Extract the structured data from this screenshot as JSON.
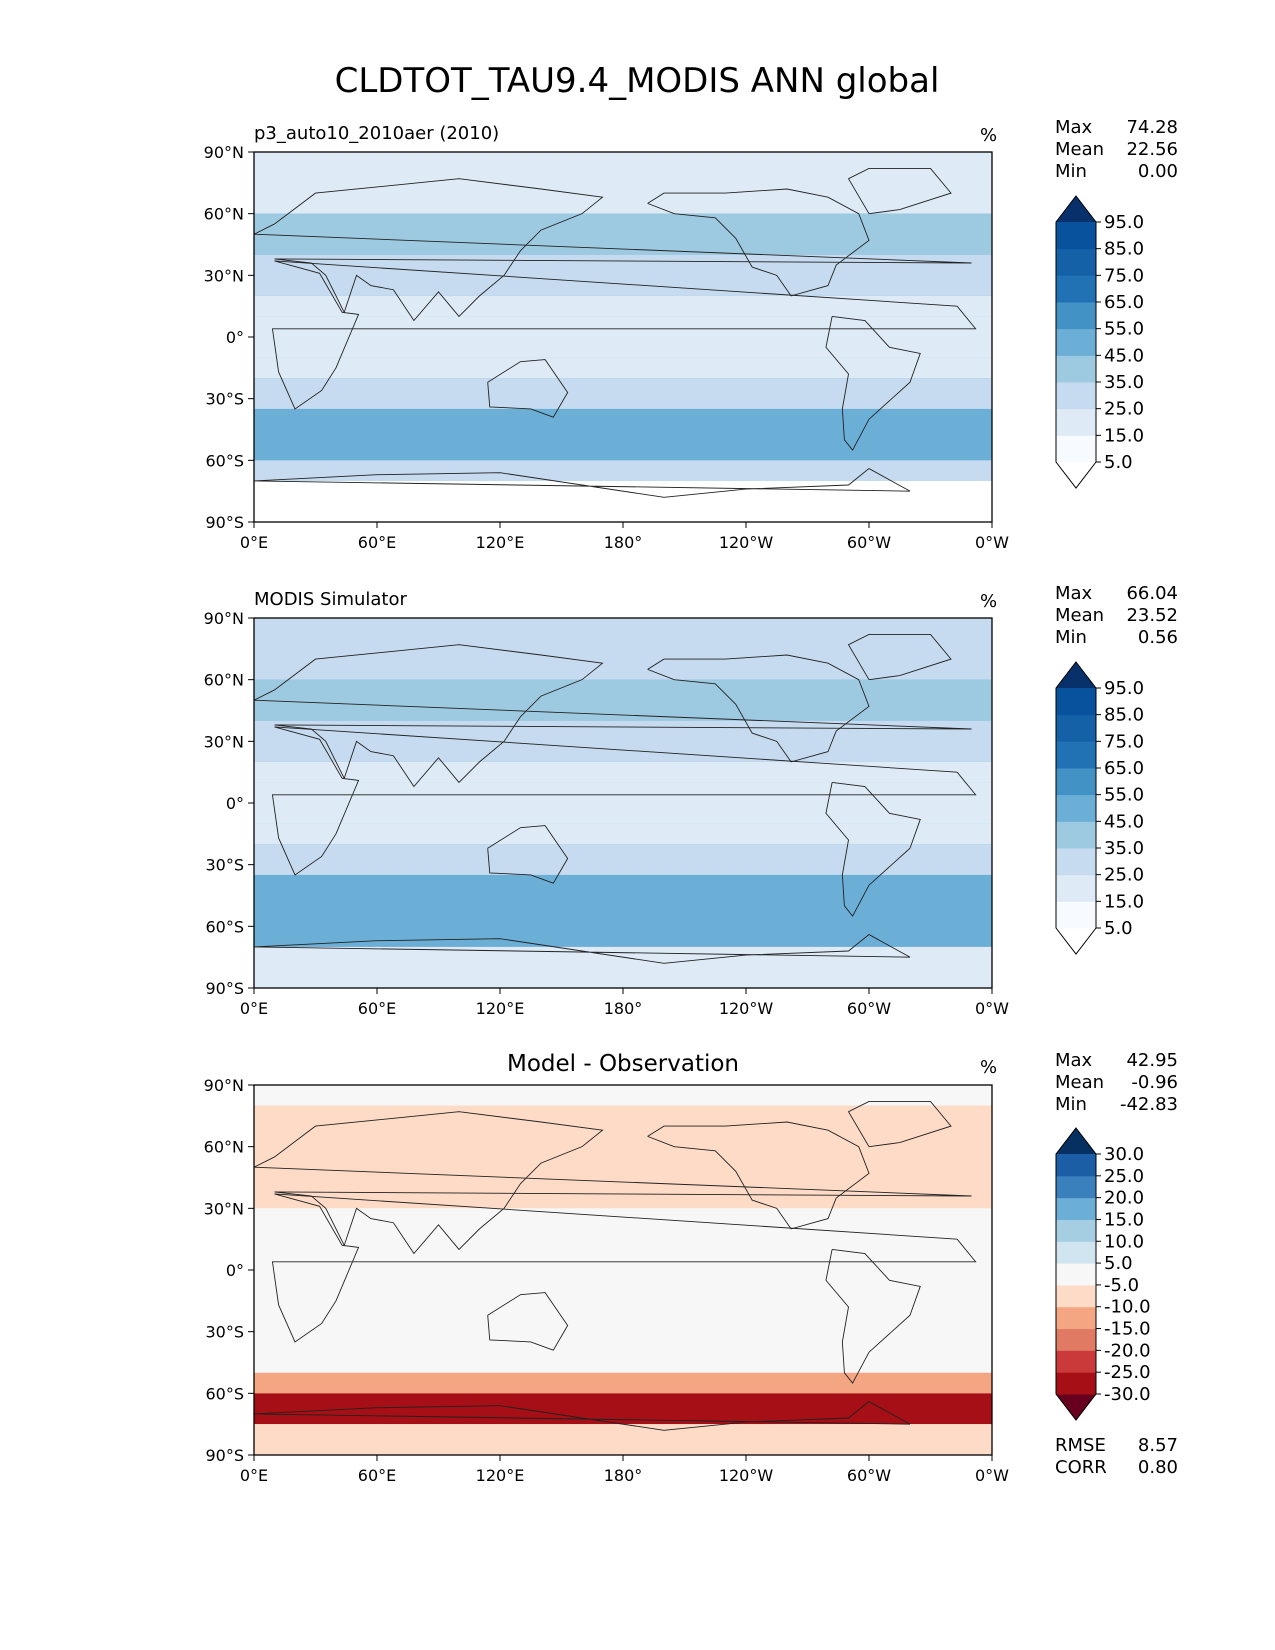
{
  "figure_title": "CLDTOT_TAU9.4_MODIS ANN global",
  "chart_data": [
    {
      "type": "heatmap",
      "title": "p3_auto10_2010aer (2010)",
      "units": "%",
      "stats": [
        {
          "label": "Max",
          "value": "74.28"
        },
        {
          "label": "Mean",
          "value": "22.56"
        },
        {
          "label": "Min",
          "value": "0.00"
        }
      ],
      "colorbar": {
        "ticks": [
          "5.0",
          "15.0",
          "25.0",
          "35.0",
          "45.0",
          "55.0",
          "65.0",
          "75.0",
          "85.0",
          "95.0"
        ],
        "colors": [
          "#ffffff",
          "#f7fbff",
          "#deebf7",
          "#c6dbef",
          "#9ecae1",
          "#6baed6",
          "#4292c6",
          "#2171b5",
          "#1461a8",
          "#08519c",
          "#08306b"
        ]
      },
      "x_ticks": [
        "0°E",
        "60°E",
        "120°E",
        "180°",
        "120°W",
        "60°W",
        "0°W"
      ],
      "y_ticks": [
        "90°N",
        "60°N",
        "30°N",
        "0°",
        "30°S",
        "60°S",
        "90°S"
      ],
      "xlim": [
        0,
        360
      ],
      "ylim": [
        -90,
        90
      ],
      "zonal_bands": [
        {
          "lat": [
            60,
            90
          ],
          "value": 22
        },
        {
          "lat": [
            40,
            60
          ],
          "value": 40
        },
        {
          "lat": [
            20,
            40
          ],
          "value": 30
        },
        {
          "lat": [
            10,
            20
          ],
          "value": 20
        },
        {
          "lat": [
            -10,
            10
          ],
          "value": 18
        },
        {
          "lat": [
            -20,
            -10
          ],
          "value": 22
        },
        {
          "lat": [
            -35,
            -20
          ],
          "value": 25
        },
        {
          "lat": [
            -60,
            -35
          ],
          "value": 45
        },
        {
          "lat": [
            -70,
            -60
          ],
          "value": 25
        },
        {
          "lat": [
            -90,
            -70
          ],
          "value": 3
        }
      ]
    },
    {
      "type": "heatmap",
      "title": "MODIS Simulator",
      "units": "%",
      "stats": [
        {
          "label": "Max",
          "value": "66.04"
        },
        {
          "label": "Mean",
          "value": "23.52"
        },
        {
          "label": "Min",
          "value": "0.56"
        }
      ],
      "colorbar": {
        "ticks": [
          "5.0",
          "15.0",
          "25.0",
          "35.0",
          "45.0",
          "55.0",
          "65.0",
          "75.0",
          "85.0",
          "95.0"
        ],
        "colors": [
          "#ffffff",
          "#f7fbff",
          "#deebf7",
          "#c6dbef",
          "#9ecae1",
          "#6baed6",
          "#4292c6",
          "#2171b5",
          "#1461a8",
          "#08519c",
          "#08306b"
        ]
      },
      "x_ticks": [
        "0°E",
        "60°E",
        "120°E",
        "180°",
        "120°W",
        "60°W",
        "0°W"
      ],
      "y_ticks": [
        "90°N",
        "60°N",
        "30°N",
        "0°",
        "30°S",
        "60°S",
        "90°S"
      ],
      "xlim": [
        0,
        360
      ],
      "ylim": [
        -90,
        90
      ],
      "zonal_bands": [
        {
          "lat": [
            60,
            90
          ],
          "value": 30
        },
        {
          "lat": [
            40,
            60
          ],
          "value": 42
        },
        {
          "lat": [
            20,
            40
          ],
          "value": 28
        },
        {
          "lat": [
            10,
            20
          ],
          "value": 20
        },
        {
          "lat": [
            -10,
            10
          ],
          "value": 15
        },
        {
          "lat": [
            -20,
            -10
          ],
          "value": 22
        },
        {
          "lat": [
            -35,
            -20
          ],
          "value": 28
        },
        {
          "lat": [
            -70,
            -35
          ],
          "value": 48
        },
        {
          "lat": [
            -90,
            -70
          ],
          "value": 18
        }
      ]
    },
    {
      "type": "heatmap",
      "title": "Model - Observation",
      "units": "%",
      "stats": [
        {
          "label": "Max",
          "value": "42.95"
        },
        {
          "label": "Mean",
          "value": "-0.96"
        },
        {
          "label": "Min",
          "value": "-42.83"
        }
      ],
      "extra_stats": [
        {
          "label": "RMSE",
          "value": "8.57"
        },
        {
          "label": "CORR",
          "value": "0.80"
        }
      ],
      "colorbar": {
        "ticks": [
          "-30.0",
          "-25.0",
          "-20.0",
          "-15.0",
          "-10.0",
          "-5.0",
          "5.0",
          "10.0",
          "15.0",
          "20.0",
          "25.0",
          "30.0"
        ],
        "colors": [
          "#67001f",
          "#a50f15",
          "#cb3a3a",
          "#e07a62",
          "#f4a582",
          "#fddbc7",
          "#f7f7f7",
          "#d1e5f0",
          "#a6cee3",
          "#6baed6",
          "#3a80bd",
          "#1b5ea6",
          "#053061"
        ]
      },
      "x_ticks": [
        "0°E",
        "60°E",
        "120°E",
        "180°",
        "120°W",
        "60°W",
        "0°W"
      ],
      "y_ticks": [
        "90°N",
        "60°N",
        "30°N",
        "0°",
        "30°S",
        "60°S",
        "90°S"
      ],
      "xlim": [
        0,
        360
      ],
      "ylim": [
        -90,
        90
      ],
      "zonal_bands": [
        {
          "lat": [
            80,
            90
          ],
          "value": 2
        },
        {
          "lat": [
            30,
            80
          ],
          "value": -6
        },
        {
          "lat": [
            -50,
            30
          ],
          "value": 0
        },
        {
          "lat": [
            -60,
            -50
          ],
          "value": -12
        },
        {
          "lat": [
            -75,
            -60
          ],
          "value": -30
        },
        {
          "lat": [
            -90,
            -75
          ],
          "value": -8
        }
      ]
    }
  ]
}
